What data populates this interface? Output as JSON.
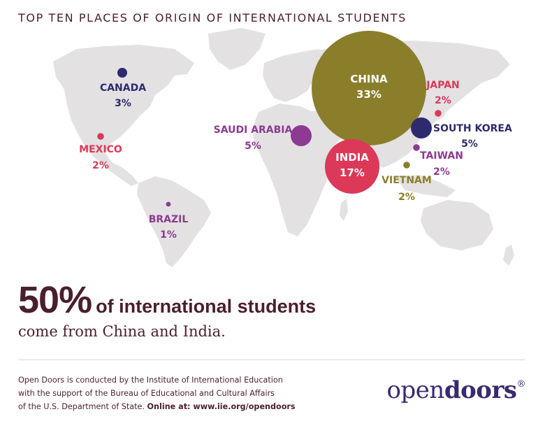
{
  "title": "TOP TEN PLACES OF ORIGIN OF INTERNATIONAL STUDENTS",
  "chart_data": {
    "type": "bubble-map",
    "title": "TOP TEN PLACES OF ORIGIN OF INTERNATIONAL STUDENTS",
    "points": [
      {
        "label": "CHINA",
        "value": 33,
        "value_label": "33%",
        "color": "#8b7e2a"
      },
      {
        "label": "INDIA",
        "value": 17,
        "value_label": "17%",
        "color": "#dc3857"
      },
      {
        "label": "SOUTH KOREA",
        "value": 5,
        "value_label": "5%",
        "color": "#2e2a6e"
      },
      {
        "label": "SAUDI ARABIA",
        "value": 5,
        "value_label": "5%",
        "color": "#8c3a92"
      },
      {
        "label": "CANADA",
        "value": 3,
        "value_label": "3%",
        "color": "#2e2a6e"
      },
      {
        "label": "VIETNAM",
        "value": 2,
        "value_label": "2%",
        "color": "#8b7e2a"
      },
      {
        "label": "TAIWAN",
        "value": 2,
        "value_label": "2%",
        "color": "#8c3a92"
      },
      {
        "label": "JAPAN",
        "value": 2,
        "value_label": "2%",
        "color": "#dc3857"
      },
      {
        "label": "MEXICO",
        "value": 2,
        "value_label": "2%",
        "color": "#dc3857"
      },
      {
        "label": "BRAZIL",
        "value": 1,
        "value_label": "1%",
        "color": "#8c3a92"
      }
    ]
  },
  "stat": {
    "big": "50%",
    "rest": "of international students"
  },
  "subline": "come from China and India.",
  "footer": {
    "line1": "Open Doors is conducted by the Institute of International Education",
    "line2": "with the support of the Bureau of Educational and Cultural Affairs",
    "line3": "of the U.S. Department of State.",
    "online": "Online at: www.iie.org/opendoors"
  },
  "logo": {
    "part1": "open",
    "part2": "doors",
    "mark": "®"
  }
}
